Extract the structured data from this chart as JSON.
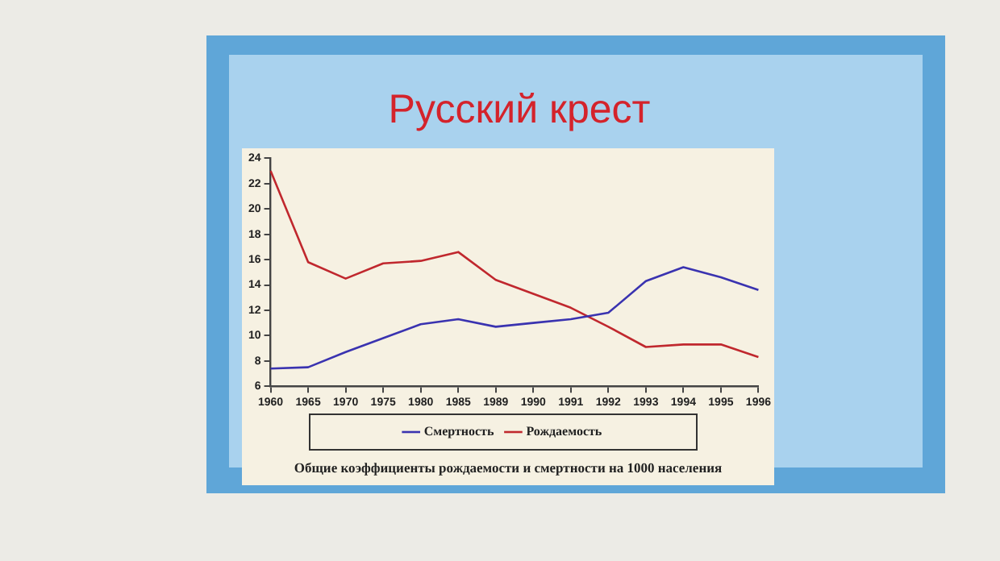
{
  "chart_data": {
    "type": "line",
    "title": "Русский крест",
    "categories": [
      "1960",
      "1965",
      "1970",
      "1975",
      "1980",
      "1985",
      "1989",
      "1990",
      "1991",
      "1992",
      "1993",
      "1994",
      "1995",
      "1996"
    ],
    "series": [
      {
        "name": "Смертность",
        "color": "#3a33b0",
        "values": [
          7.4,
          7.5,
          8.7,
          9.8,
          10.9,
          11.3,
          10.7,
          11.0,
          11.3,
          11.8,
          14.3,
          15.4,
          14.6,
          13.6
        ]
      },
      {
        "name": "Рождаемость",
        "color": "#c0282e",
        "values": [
          23.0,
          15.8,
          14.5,
          15.7,
          15.9,
          16.6,
          14.4,
          13.3,
          12.2,
          10.7,
          9.1,
          9.3,
          9.3,
          8.3
        ]
      }
    ],
    "ylim": [
      6,
      24
    ],
    "yticks": [
      6,
      8,
      10,
      12,
      14,
      16,
      18,
      20,
      22,
      24
    ],
    "legend": "bottom",
    "marker": "none",
    "line_style": "solid",
    "annotations": [
      "Общие коэффициенты рождаемости и смертности на 1000 населения"
    ]
  }
}
